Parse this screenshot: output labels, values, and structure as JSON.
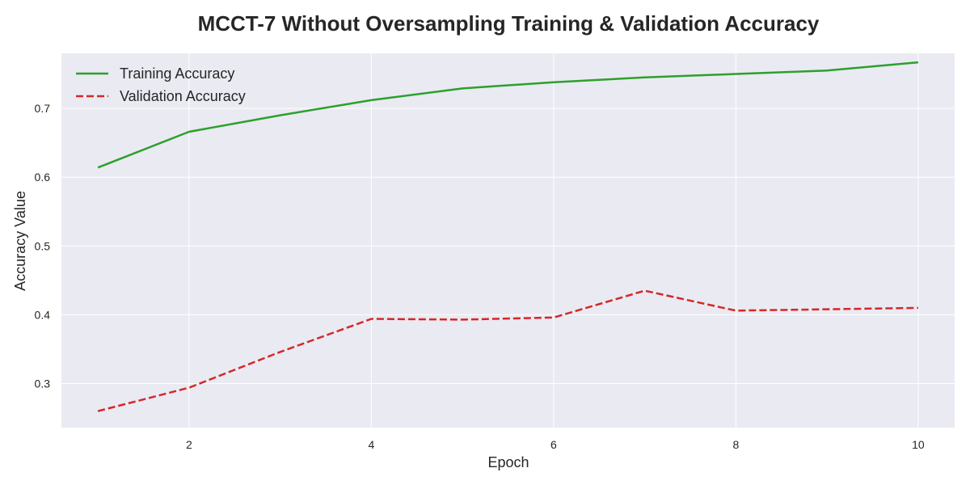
{
  "chart_data": {
    "type": "line",
    "title": "MCCT-7 Without Oversampling Training & Validation Accuracy",
    "xlabel": "Epoch",
    "ylabel": "Accuracy Value",
    "x": [
      1,
      2,
      3,
      4,
      5,
      6,
      7,
      8,
      9,
      10
    ],
    "xlim": [
      0.6,
      10.4
    ],
    "ylim": [
      0.236,
      0.78
    ],
    "xticks": [
      2,
      4,
      6,
      8,
      10
    ],
    "yticks": [
      0.3,
      0.4,
      0.5,
      0.6,
      0.7
    ],
    "grid": true,
    "legend_position": "top-left",
    "background": "#EAEAF2",
    "series": [
      {
        "name": "Training Accuracy",
        "color": "#2CA02C",
        "style": "solid",
        "values": [
          0.614,
          0.666,
          0.69,
          0.712,
          0.729,
          0.738,
          0.745,
          0.75,
          0.755,
          0.767
        ]
      },
      {
        "name": "Validation Accuracy",
        "color": "#D62728",
        "style": "dashed",
        "values": [
          0.26,
          0.294,
          0.346,
          0.394,
          0.393,
          0.396,
          0.435,
          0.406,
          0.408,
          0.41
        ]
      }
    ]
  }
}
